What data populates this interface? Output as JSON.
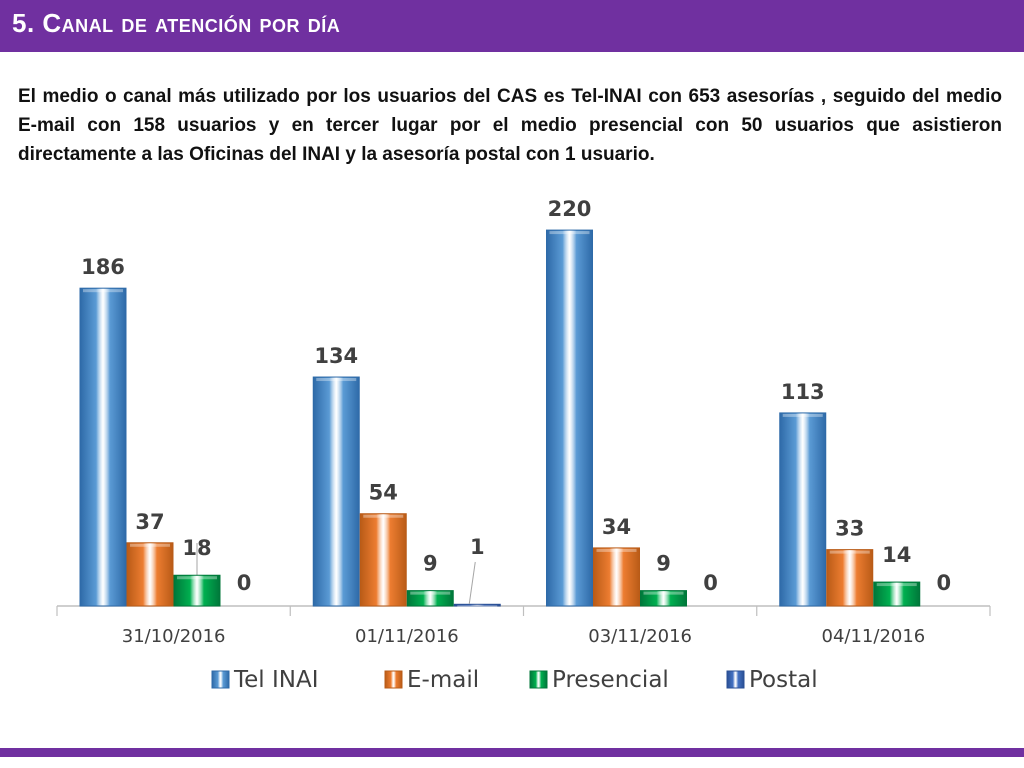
{
  "header": {
    "title": "5. Canal de atención por día"
  },
  "summary": "El medio o canal más utilizado por los usuarios del CAS es Tel-INAI con 653 asesorías , seguido del medio E-mail con 158 usuarios y en tercer lugar por el medio presencial con 50 usuarios que  asistieron directamente a las Oficinas del INAI y la asesoría postal con 1 usuario.",
  "colors": {
    "accent": "#7030a0",
    "tel_inai": "#5b9bd5",
    "email": "#ed7d31",
    "presencial": "#00b050",
    "postal": "#4472c4"
  },
  "chart_data": {
    "type": "bar",
    "categories": [
      "31/10/2016",
      "01/11/2016",
      "03/11/2016",
      "04/11/2016"
    ],
    "series": [
      {
        "name": "Tel INAI",
        "values": [
          186,
          134,
          220,
          113
        ]
      },
      {
        "name": "E-mail",
        "values": [
          37,
          54,
          34,
          33
        ]
      },
      {
        "name": "Presencial",
        "values": [
          18,
          9,
          9,
          14
        ]
      },
      {
        "name": "Postal",
        "values": [
          0,
          1,
          0,
          0
        ]
      }
    ],
    "data_labels": [
      [
        "186",
        "134",
        "220",
        "113"
      ],
      [
        "37",
        "54",
        "34",
        "33"
      ],
      [
        "18",
        "9",
        "9",
        "14"
      ],
      [
        "0",
        "1",
        "0",
        "0"
      ]
    ],
    "ylim": [
      0,
      230
    ],
    "legend_position": "bottom",
    "grid": false
  }
}
